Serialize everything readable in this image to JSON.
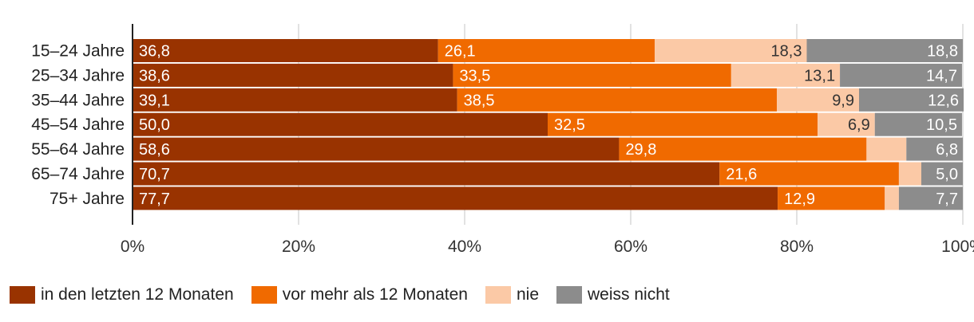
{
  "chart_data": {
    "type": "bar",
    "orientation": "horizontal",
    "stacked": true,
    "categories": [
      "15–24 Jahre",
      "25–34 Jahre",
      "35–44 Jahre",
      "45–54 Jahre",
      "55–64 Jahre",
      "65–74 Jahre",
      "75+ Jahre"
    ],
    "series": [
      {
        "name": "in den letzten 12 Monaten",
        "color": "#993300",
        "values": [
          36.8,
          38.6,
          39.1,
          50.0,
          58.6,
          70.7,
          77.7
        ],
        "labels": [
          "36,8",
          "38,6",
          "39,1",
          "50,0",
          "58,6",
          "70,7",
          "77,7"
        ]
      },
      {
        "name": "vor mehr als 12 Monaten",
        "color": "#F06A00",
        "values": [
          26.1,
          33.5,
          38.5,
          32.5,
          29.8,
          21.6,
          12.9
        ],
        "labels": [
          "26,1",
          "33,5",
          "38,5",
          "32,5",
          "29,8",
          "21,6",
          "12,9"
        ]
      },
      {
        "name": "nie",
        "color": "#FBC9A6",
        "values": [
          18.3,
          13.1,
          9.9,
          6.9,
          4.8,
          2.7,
          1.7
        ],
        "labels": [
          "18,3",
          "13,1",
          "9,9",
          "6,9",
          "",
          "",
          ""
        ]
      },
      {
        "name": "weiss nicht",
        "color": "#8C8C8C",
        "values": [
          18.8,
          14.7,
          12.6,
          10.5,
          6.8,
          5.0,
          7.7
        ],
        "labels": [
          "18,8",
          "14,7",
          "12,6",
          "10,5",
          "6,8",
          "5,0",
          "7,7"
        ]
      }
    ],
    "xlim": [
      0,
      100
    ],
    "xticks": [
      "0%",
      "20%",
      "40%",
      "60%",
      "80%",
      "100%"
    ],
    "grid": true,
    "legend_position": "bottom-left"
  }
}
